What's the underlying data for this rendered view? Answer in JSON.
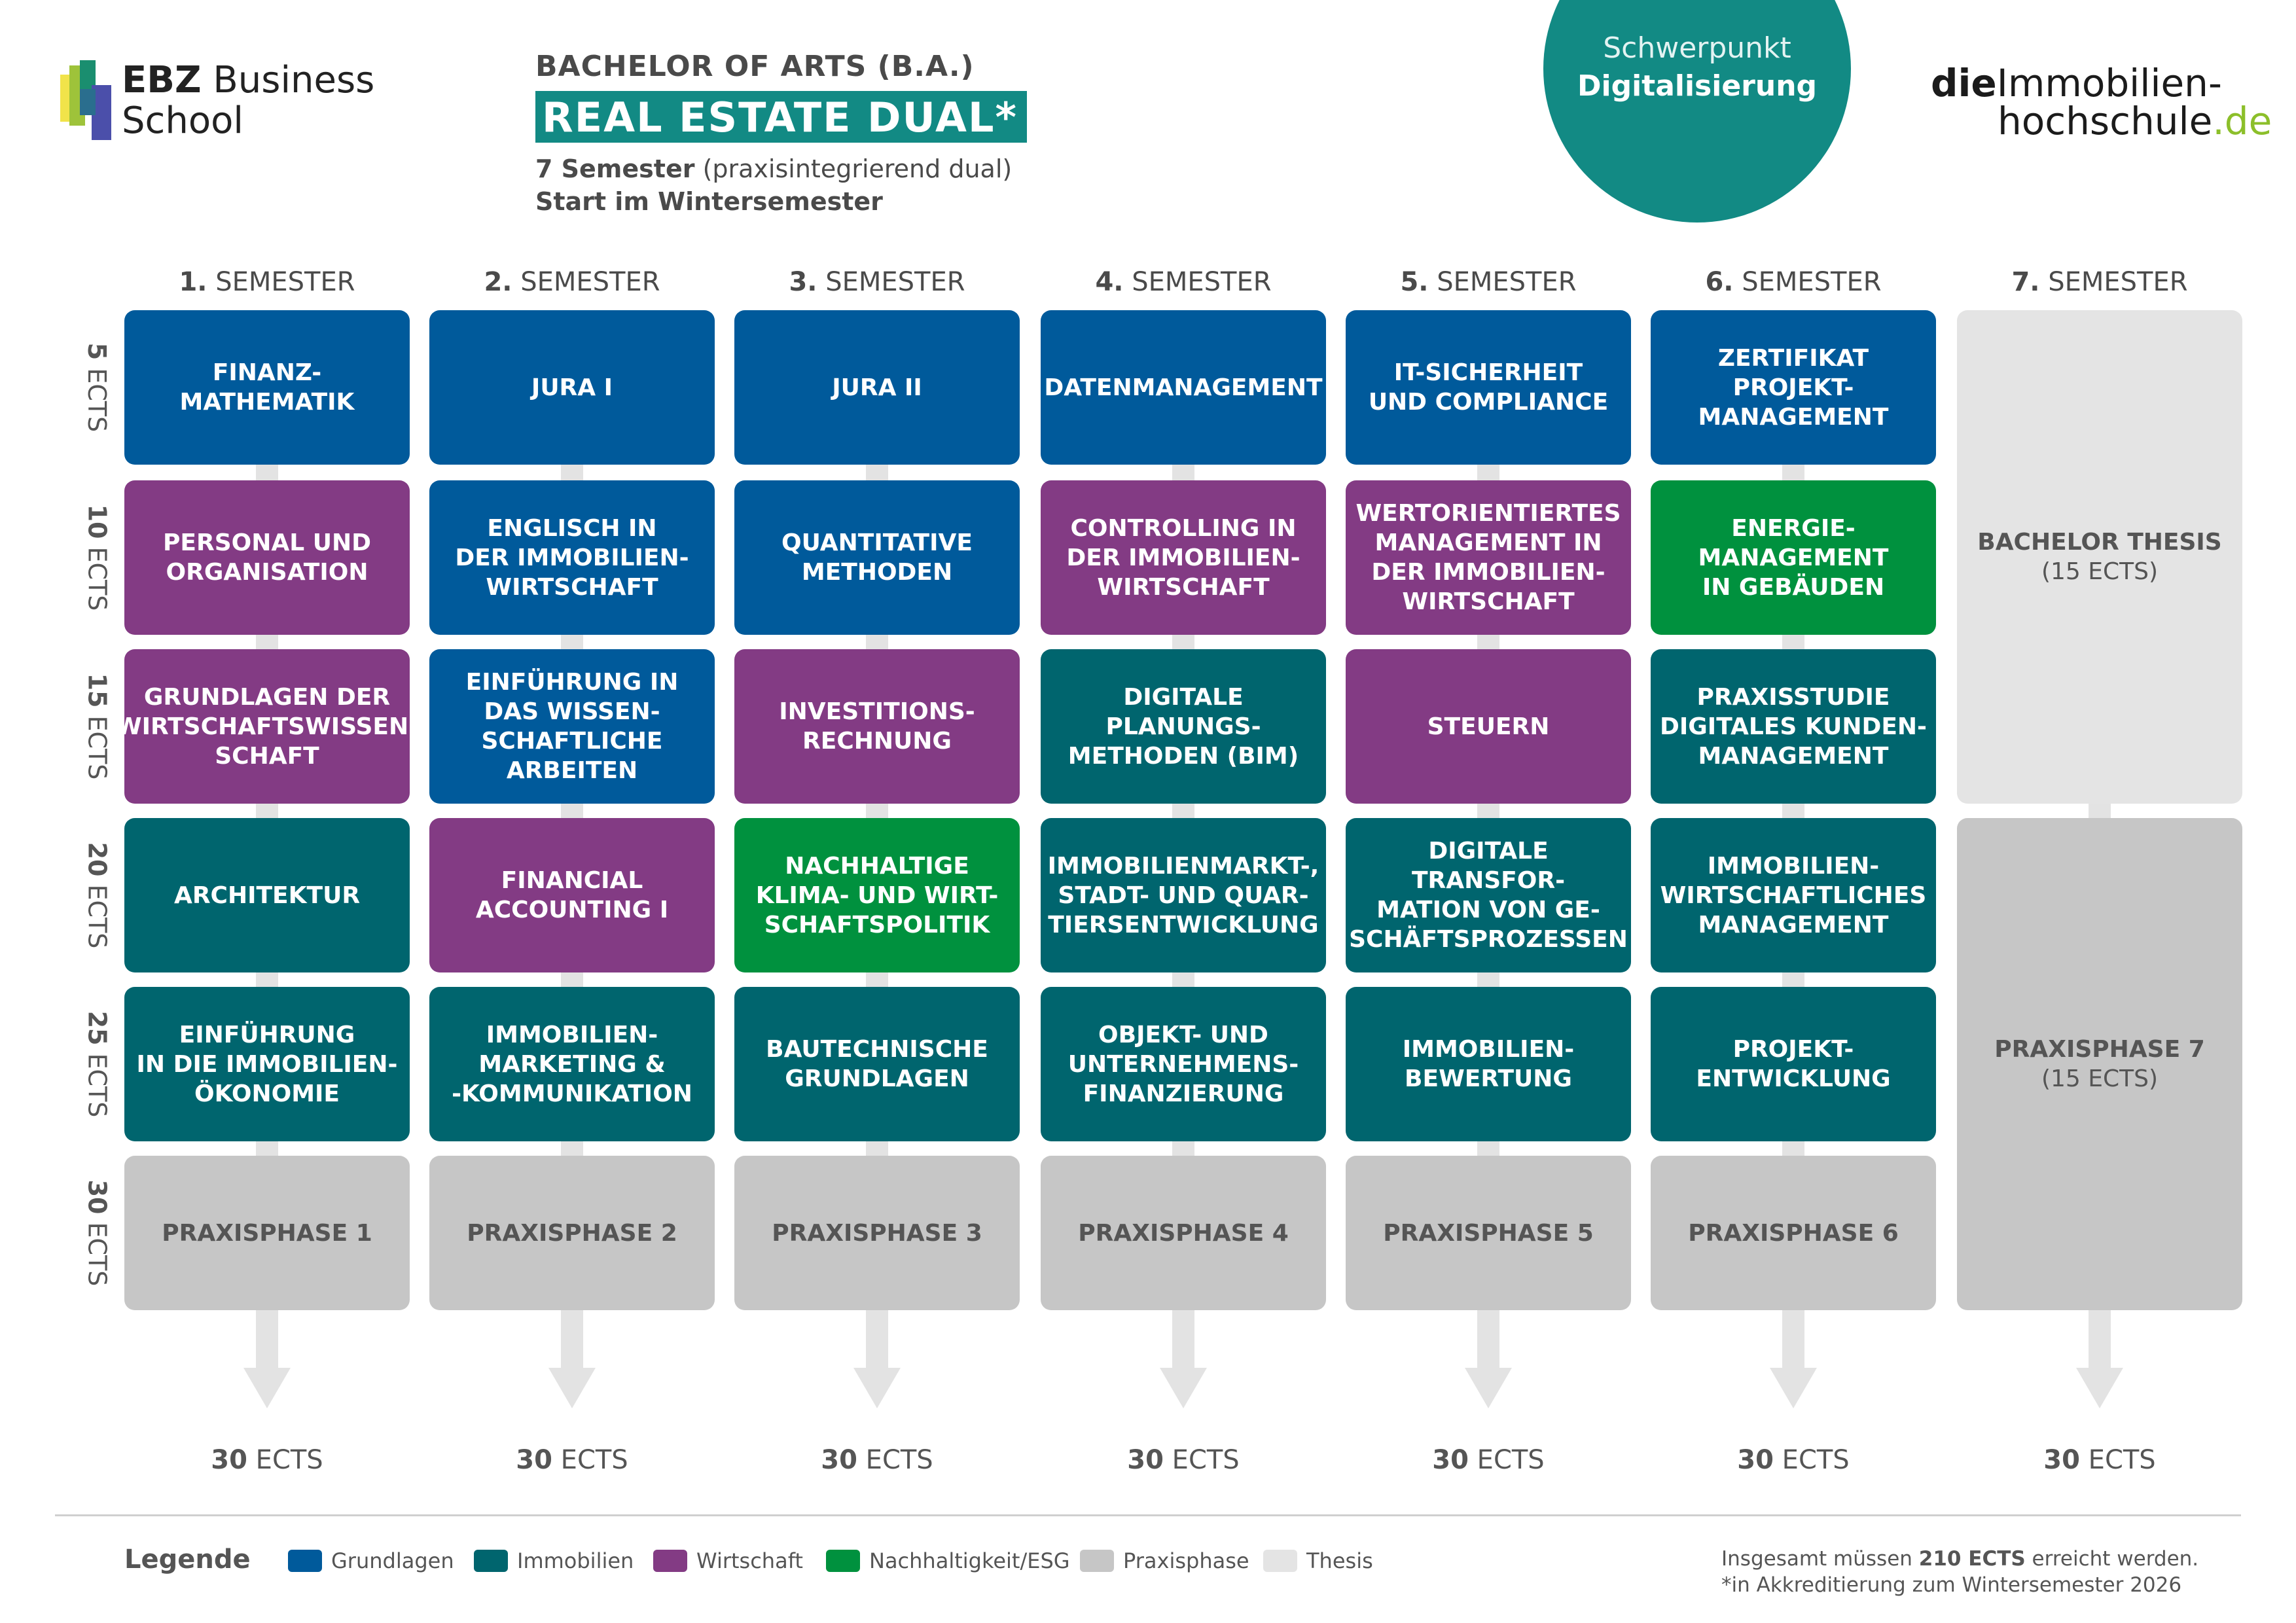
{
  "header": {
    "logo_bold": "EBZ",
    "logo_rest": "Business",
    "logo_line2": "School",
    "degree": "BACHELOR OF ARTS (B.A.)",
    "program": "REAL ESTATE DUAL*",
    "semesters_bold": "7 Semester",
    "semesters_rest": "(praxisintegrierend dual)",
    "start": "Start im Wintersemester",
    "focus_line1": "Schwerpunkt",
    "focus_line2": "Digitalisierung",
    "brand_bold": "die",
    "brand_rest": "Immobilien-",
    "brand_line2": "hochschule",
    "brand_tld": ".de"
  },
  "semester_suffix": "SEMESTER",
  "semesters": [
    {
      "num": "1.",
      "total_num": "30",
      "total_unit": "ECTS",
      "modules": [
        {
          "label": "FINANZ-\nMATHEMATIK",
          "cat": "grund"
        },
        {
          "label": "PERSONAL UND\nORGANISATION",
          "cat": "wirt"
        },
        {
          "label": "GRUNDLAGEN DER\nWIRTSCHAFTSWISSEN-\nSCHAFT",
          "cat": "wirt"
        },
        {
          "label": "ARCHITEKTUR",
          "cat": "immo"
        },
        {
          "label": "EINFÜHRUNG\nIN DIE IMMOBILIEN-\nÖKONOMIE",
          "cat": "immo"
        },
        {
          "label": "PRAXISPHASE 1",
          "cat": "prax"
        }
      ]
    },
    {
      "num": "2.",
      "total_num": "30",
      "total_unit": "ECTS",
      "modules": [
        {
          "label": "JURA I",
          "cat": "grund"
        },
        {
          "label": "ENGLISCH IN\nDER IMMOBILIEN-\nWIRTSCHAFT",
          "cat": "grund"
        },
        {
          "label": "EINFÜHRUNG IN\nDAS WISSEN-\nSCHAFTLICHE\nARBEITEN",
          "cat": "grund"
        },
        {
          "label": "FINANCIAL\nACCOUNTING I",
          "cat": "wirt"
        },
        {
          "label": "IMMOBILIEN-\nMARKETING &\n-KOMMUNIKATION",
          "cat": "immo"
        },
        {
          "label": "PRAXISPHASE 2",
          "cat": "prax"
        }
      ]
    },
    {
      "num": "3.",
      "total_num": "30",
      "total_unit": "ECTS",
      "modules": [
        {
          "label": "JURA II",
          "cat": "grund"
        },
        {
          "label": "QUANTITATIVE\nMETHODEN",
          "cat": "grund"
        },
        {
          "label": "INVESTITIONS-\nRECHNUNG",
          "cat": "wirt"
        },
        {
          "label": "NACHHALTIGE\nKLIMA- UND WIRT-\nSCHAFTSPOLITIK",
          "cat": "nach"
        },
        {
          "label": "BAUTECHNISCHE\nGRUNDLAGEN",
          "cat": "immo"
        },
        {
          "label": "PRAXISPHASE 3",
          "cat": "prax"
        }
      ]
    },
    {
      "num": "4.",
      "total_num": "30",
      "total_unit": "ECTS",
      "modules": [
        {
          "label": "DATENMANAGEMENT",
          "cat": "grund"
        },
        {
          "label": "CONTROLLING IN\nDER IMMOBILIEN-\nWIRTSCHAFT",
          "cat": "wirt"
        },
        {
          "label": "DIGITALE PLANUNGS-\nMETHODEN (BIM)",
          "cat": "immo"
        },
        {
          "label": "IMMOBILIENMARKT-,\nSTADT- UND QUAR-\nTIERSENTWICKLUNG",
          "cat": "immo"
        },
        {
          "label": "OBJEKT- UND\nUNTERNEHMENS-\nFINANZIERUNG",
          "cat": "immo"
        },
        {
          "label": "PRAXISPHASE 4",
          "cat": "prax"
        }
      ]
    },
    {
      "num": "5.",
      "total_num": "30",
      "total_unit": "ECTS",
      "modules": [
        {
          "label": "IT-SICHERHEIT\nUND COMPLIANCE",
          "cat": "grund"
        },
        {
          "label": "WERTORIENTIERTES\nMANAGEMENT IN\nDER IMMOBILIEN-\nWIRTSCHAFT",
          "cat": "wirt"
        },
        {
          "label": "STEUERN",
          "cat": "wirt"
        },
        {
          "label": "DIGITALE TRANSFOR-\nMATION VON GE-\nSCHÄFTSPROZESSEN",
          "cat": "immo"
        },
        {
          "label": "IMMOBILIEN-\nBEWERTUNG",
          "cat": "immo"
        },
        {
          "label": "PRAXISPHASE 5",
          "cat": "prax"
        }
      ]
    },
    {
      "num": "6.",
      "total_num": "30",
      "total_unit": "ECTS",
      "modules": [
        {
          "label": "ZERTIFIKAT PROJEKT-\nMANAGEMENT",
          "cat": "grund"
        },
        {
          "label": "ENERGIE-\nMANAGEMENT\nIN GEBÄUDEN",
          "cat": "nach"
        },
        {
          "label": "PRAXISSTUDIE\nDIGITALES KUNDEN-\nMANAGEMENT",
          "cat": "immo"
        },
        {
          "label": "IMMOBILIEN-\nWIRTSCHAFTLICHES\nMANAGEMENT",
          "cat": "immo"
        },
        {
          "label": "PROJEKT-\nENTWICKLUNG",
          "cat": "immo"
        },
        {
          "label": "PRAXISPHASE 6",
          "cat": "prax"
        }
      ]
    },
    {
      "num": "7.",
      "total_num": "30",
      "total_unit": "ECTS",
      "thesis": {
        "label": "BACHELOR THESIS",
        "sub": "(15 ECTS)"
      },
      "practice": {
        "label": "PRAXISPHASE 7",
        "sub": "(15 ECTS)"
      }
    }
  ],
  "ects_rows": [
    {
      "num": "5",
      "unit": "ECTS"
    },
    {
      "num": "10",
      "unit": "ECTS"
    },
    {
      "num": "15",
      "unit": "ECTS"
    },
    {
      "num": "20",
      "unit": "ECTS"
    },
    {
      "num": "25",
      "unit": "ECTS"
    },
    {
      "num": "30",
      "unit": "ECTS"
    }
  ],
  "legend": {
    "title": "Legende",
    "items": [
      {
        "label": "Grundlagen",
        "color": "#005a9b"
      },
      {
        "label": "Immobilien",
        "color": "#00656e"
      },
      {
        "label": "Wirtschaft",
        "color": "#833b84"
      },
      {
        "label": "Nachhaltigkeit/ESG",
        "color": "#00913e"
      },
      {
        "label": "Praxisphase",
        "color": "#c6c6c6"
      },
      {
        "label": "Thesis",
        "color": "#e4e4e4"
      }
    ]
  },
  "footer": {
    "note_pre": "Insgesamt müssen",
    "note_bold": "210 ECTS",
    "note_post": "erreicht werden.",
    "note_line2": "*in Akkreditierung zum Wintersemester 2026"
  }
}
